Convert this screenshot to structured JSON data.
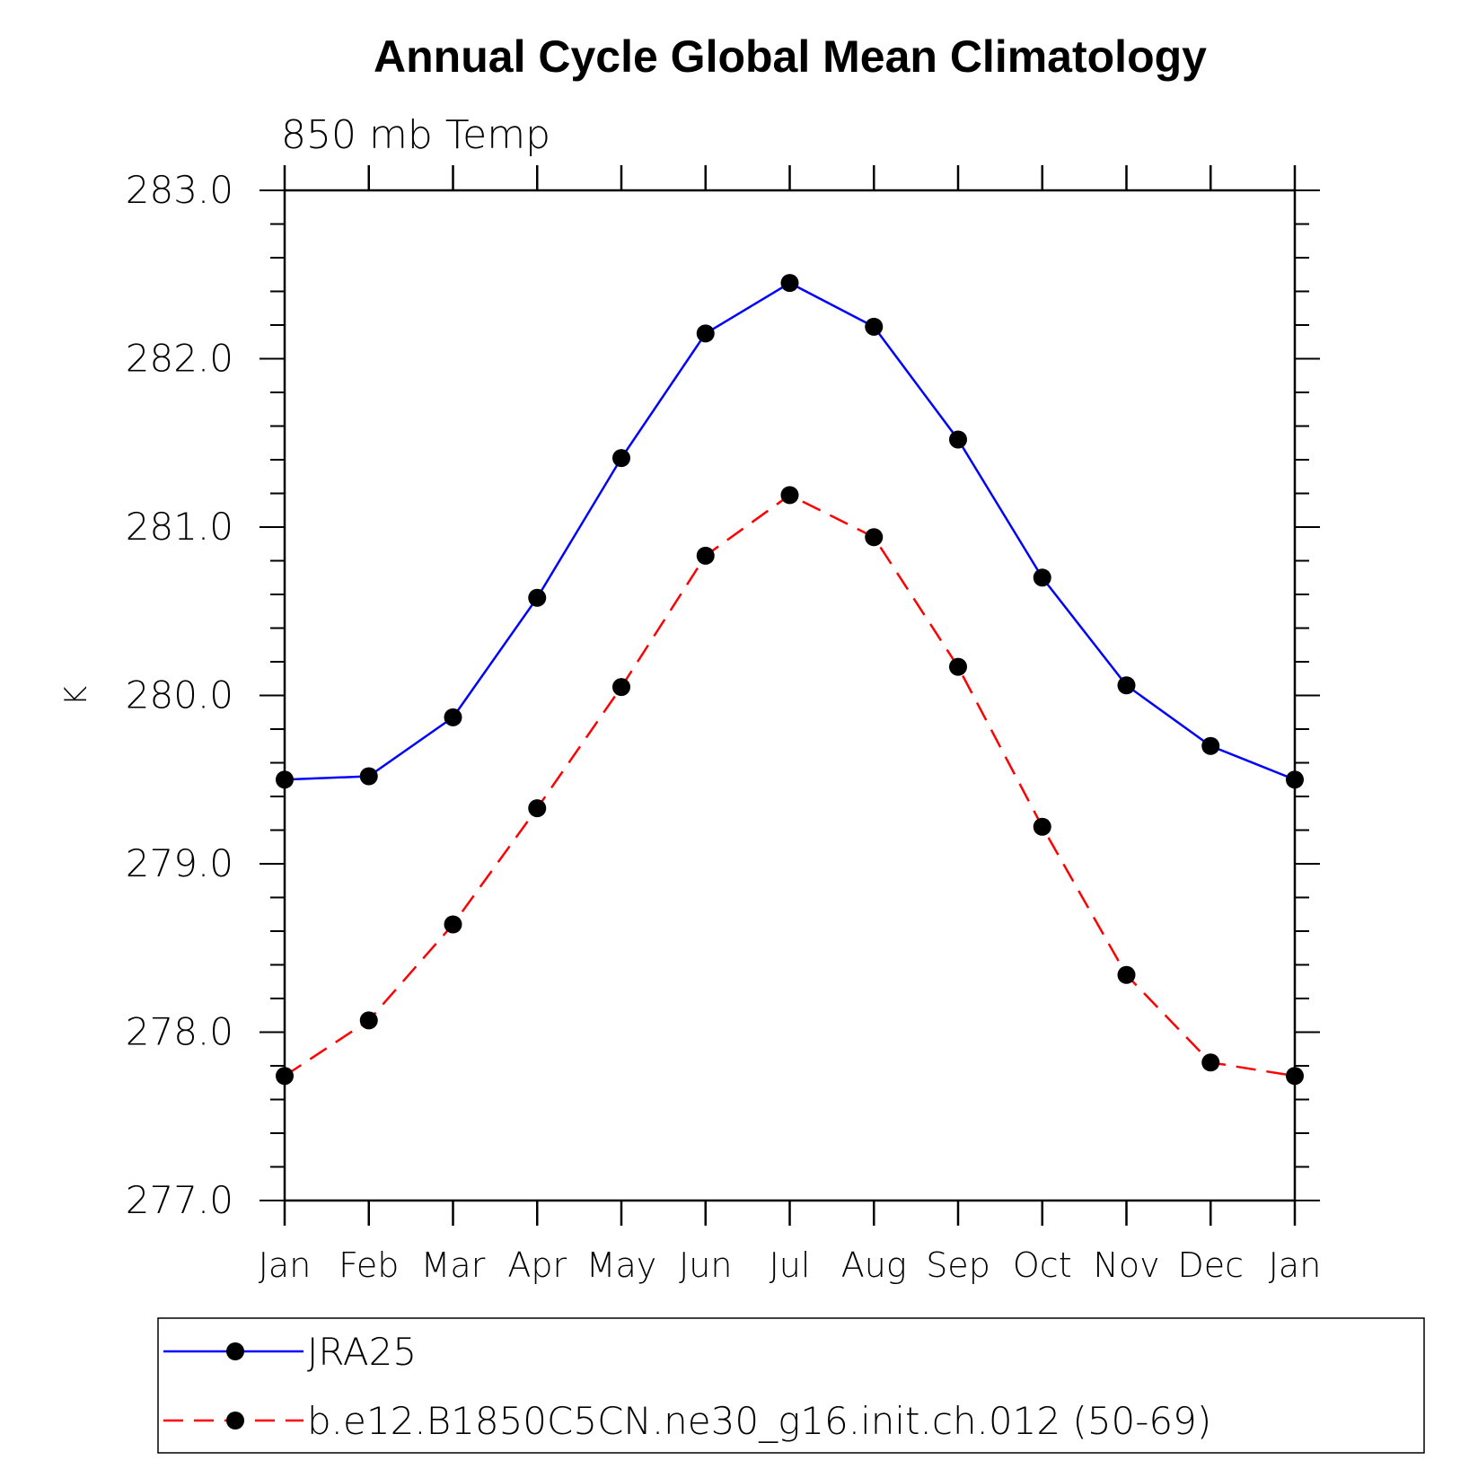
{
  "chart_data": {
    "type": "line",
    "title": "Annual Cycle Global Mean Climatology",
    "subtitle": "850 mb Temp",
    "ylabel": "K",
    "xlabel": "",
    "categories": [
      "Jan",
      "Feb",
      "Mar",
      "Apr",
      "May",
      "Jun",
      "Jul",
      "Aug",
      "Sep",
      "Oct",
      "Nov",
      "Dec",
      "Jan"
    ],
    "ylim": [
      277.0,
      283.0
    ],
    "yticks": [
      "277.0",
      "278.0",
      "279.0",
      "280.0",
      "281.0",
      "282.0",
      "283.0"
    ],
    "grid": false,
    "legend_position": "bottom",
    "series": [
      {
        "name": "JRA25",
        "color": "#0000ff",
        "line_style": "solid",
        "marker": "filled-circle",
        "values": [
          279.5,
          279.52,
          279.87,
          280.58,
          281.41,
          282.15,
          282.45,
          282.19,
          281.52,
          280.7,
          280.06,
          279.7,
          279.5
        ]
      },
      {
        "name": "b.e12.B1850C5CN.ne30_g16.init.ch.012 (50-69)",
        "color": "#ff0000",
        "line_style": "dashed",
        "marker": "filled-circle",
        "values": [
          277.74,
          278.07,
          278.64,
          279.33,
          280.05,
          280.83,
          281.19,
          280.94,
          280.17,
          279.22,
          278.34,
          277.82,
          277.74
        ]
      }
    ]
  }
}
